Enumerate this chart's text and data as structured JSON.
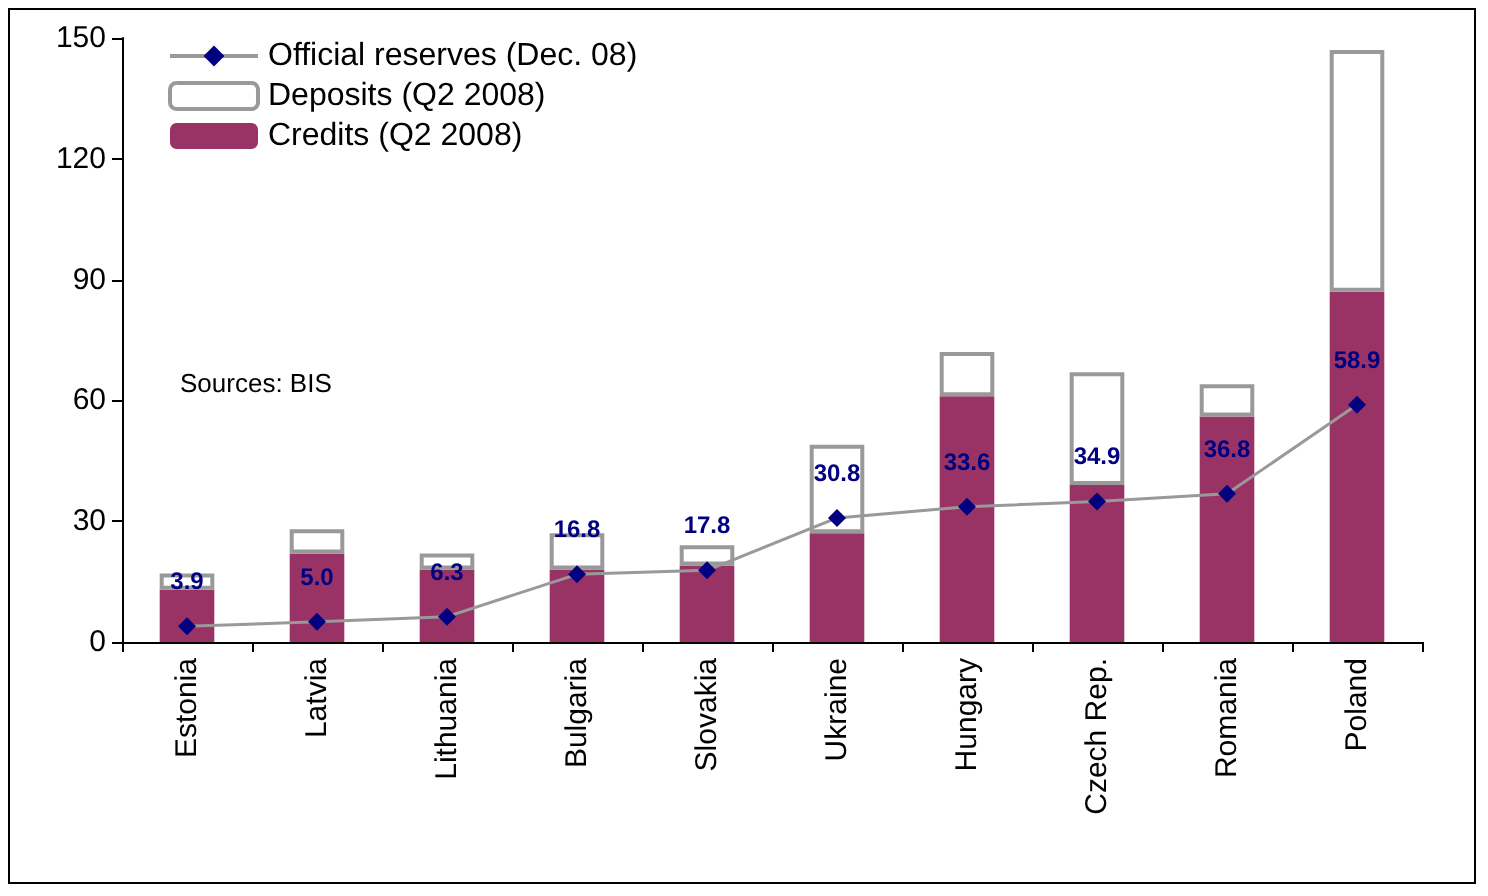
{
  "chart_data": {
    "type": "bar",
    "stacked": true,
    "categories": [
      "Estonia",
      "Latvia",
      "Lithuania",
      "Bulgaria",
      "Slovakia",
      "Ukraine",
      "Hungary",
      "Czech Rep.",
      "Romania",
      "Poland"
    ],
    "series": [
      {
        "name": "Credits (Q2 2008)",
        "color": "#993366",
        "values": [
          13,
          22,
          18,
          18,
          19,
          27,
          61,
          39,
          56,
          87
        ]
      },
      {
        "name": "Deposits (Q2 2008)",
        "color": "#ffffff",
        "values": [
          4,
          6,
          4,
          9,
          5,
          22,
          11,
          28,
          8,
          60
        ]
      },
      {
        "name": "Official reserves (Dec. 08)",
        "type": "line",
        "color": "#000080",
        "marker": "diamond",
        "value_labels": [
          "3.9",
          "5.0",
          "6.3",
          "16.8",
          "17.8",
          "30.8",
          "33.6",
          "34.9",
          "36.8",
          "58.9"
        ],
        "values": [
          3.9,
          5.0,
          6.3,
          16.8,
          17.8,
          30.8,
          33.6,
          34.9,
          36.8,
          58.9
        ]
      }
    ],
    "ylim": [
      0,
      150
    ],
    "yticks": [
      0,
      30,
      60,
      90,
      120,
      150
    ],
    "grid": false,
    "legend": "top left",
    "annotations": [
      "Sources: BIS"
    ]
  }
}
